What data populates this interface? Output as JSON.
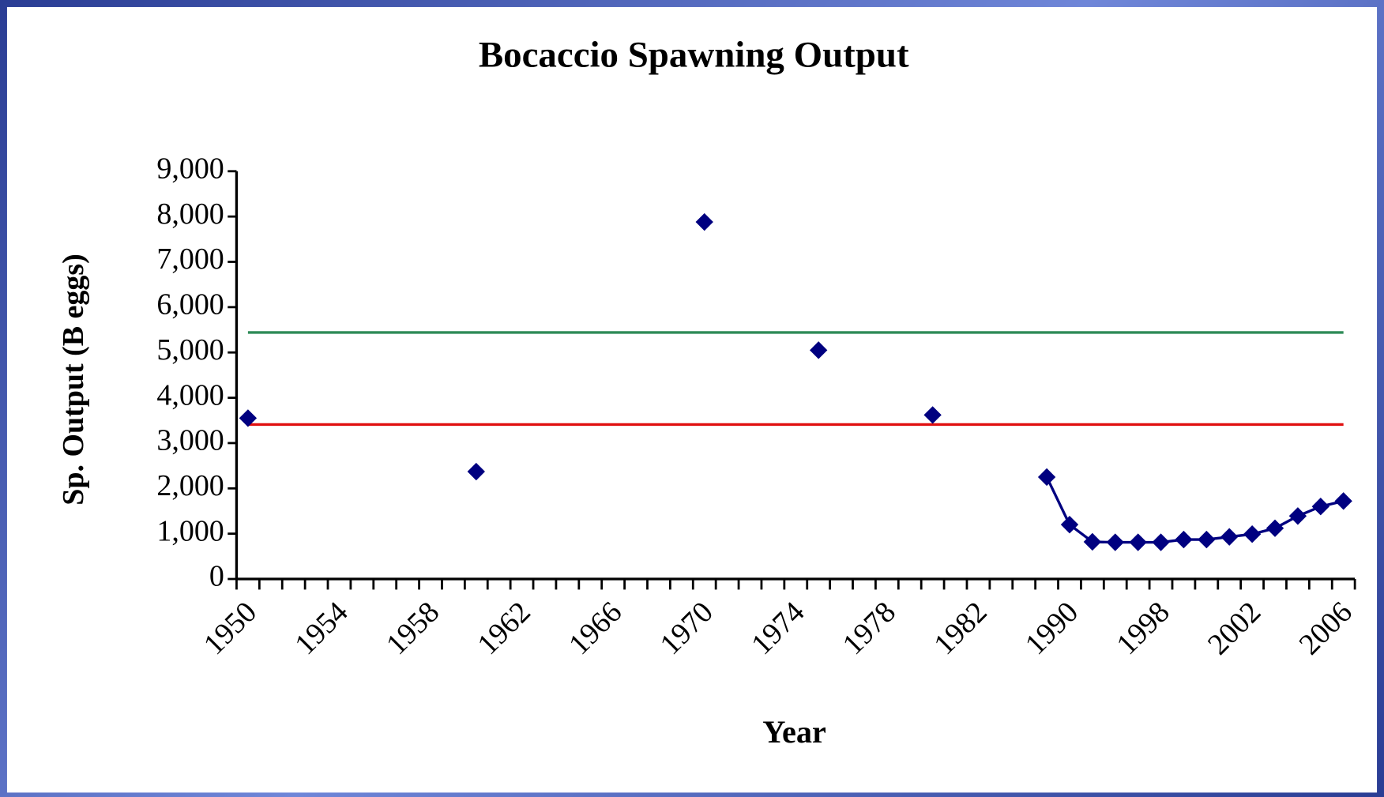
{
  "chart_data": {
    "type": "line",
    "title": "Bocaccio Spawning Output",
    "x_label": "Year",
    "y_label": "Sp. Output (B eggs)",
    "categories": [
      "1950",
      null,
      null,
      null,
      "1954",
      null,
      null,
      null,
      "1958",
      null,
      null,
      null,
      "1962",
      null,
      null,
      null,
      "1966",
      null,
      null,
      null,
      "1970",
      null,
      null,
      null,
      "1974",
      null,
      null,
      null,
      "1978",
      null,
      null,
      null,
      "1982",
      null,
      null,
      null,
      "1990",
      null,
      null,
      null,
      "1998",
      null,
      null,
      null,
      "2002",
      null,
      null,
      null,
      "2006"
    ],
    "ylim": [
      0,
      9000
    ],
    "yticks": [
      0,
      {
        "value": 1000,
        "label": "1,000"
      },
      {
        "value": 2000,
        "label": "2,000"
      },
      {
        "value": 3000,
        "label": "3,000"
      },
      {
        "value": 4000,
        "label": "4,000"
      },
      {
        "value": 5000,
        "label": "5,000"
      },
      {
        "value": 6000,
        "label": "6,000"
      },
      {
        "value": 7000,
        "label": "7,000"
      },
      {
        "value": 8000,
        "label": "8,000"
      },
      {
        "value": 9000,
        "label": "9,000"
      }
    ],
    "series": [
      {
        "color": "#000080",
        "marker": "diamond",
        "values": [
          3550,
          null,
          null,
          null,
          null,
          null,
          null,
          null,
          null,
          null,
          2370,
          null,
          null,
          null,
          null,
          null,
          null,
          null,
          null,
          null,
          7880,
          null,
          null,
          null,
          null,
          5050,
          null,
          null,
          null,
          null,
          3620,
          null,
          null,
          null,
          null,
          2250,
          1200,
          820,
          810,
          810,
          810,
          870,
          870,
          930,
          990,
          1120,
          1390,
          1600,
          1720
        ]
      },
      {
        "color": "#2e8b57",
        "values": [
          5440,
          5440,
          5440,
          5440,
          5440,
          5440,
          5440,
          5440,
          5440,
          5440,
          5440,
          5440,
          5440,
          5440,
          5440,
          5440,
          5440,
          5440,
          5440,
          5440,
          5440,
          5440,
          5440,
          5440,
          5440,
          5440,
          5440,
          5440,
          5440,
          5440,
          5440,
          5440,
          5440,
          5440,
          5440,
          5440,
          5440,
          5440,
          5440,
          5440,
          5440,
          5440,
          5440,
          5440,
          5440,
          5440,
          5440,
          5440,
          5440
        ]
      },
      {
        "color": "#e01010",
        "values": [
          3410,
          3410,
          3410,
          3410,
          3410,
          3410,
          3410,
          3410,
          3410,
          3410,
          3410,
          3410,
          3410,
          3410,
          3410,
          3410,
          3410,
          3410,
          3410,
          3410,
          3410,
          3410,
          3410,
          3410,
          3410,
          3410,
          3410,
          3410,
          3410,
          3410,
          3410,
          3410,
          3410,
          3410,
          3410,
          3410,
          3410,
          3410,
          3410,
          3410,
          3410,
          3410,
          3410,
          3410,
          3410,
          3410,
          3410,
          3410,
          3410
        ]
      }
    ]
  }
}
